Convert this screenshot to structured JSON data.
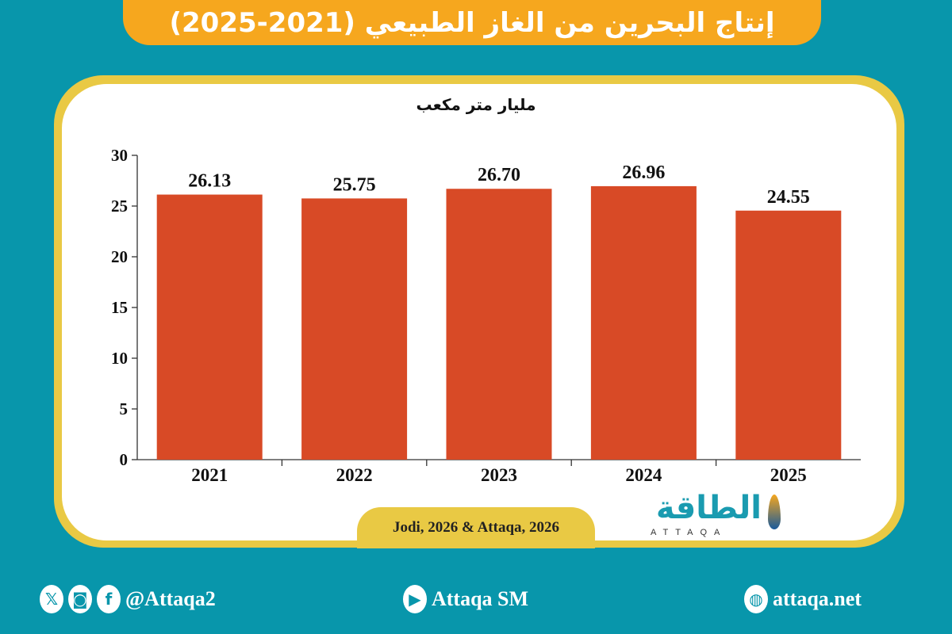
{
  "title": "إنتاج البحرين من الغاز الطبيعي (2021-2025)",
  "source": "Jodi, 2026 & Attaqa, 2026",
  "logo": {
    "arabic": "الطاقة",
    "english": "ATTAQA"
  },
  "footer": {
    "social_handle": "@Attaqa2",
    "youtube": "Attaqa SM",
    "website": "attaqa.net",
    "icons": [
      "x-icon",
      "instagram-icon",
      "facebook-icon",
      "youtube-icon",
      "globe-icon"
    ]
  },
  "colors": {
    "background": "#0896ab",
    "banner": "#f6a71e",
    "card_border": "#e9c944",
    "bar": "#d84a26"
  },
  "chart_data": {
    "type": "bar",
    "title": "إنتاج البحرين من الغاز الطبيعي (2021-2025)",
    "ylabel": "مليار متر مكعب",
    "xlabel": "",
    "categories": [
      "2021",
      "2022",
      "2023",
      "2024",
      "2025"
    ],
    "values": [
      26.13,
      25.75,
      26.7,
      26.96,
      24.55
    ],
    "value_labels": [
      "26.13",
      "25.75",
      "26.70",
      "26.96",
      "24.55"
    ],
    "ylim": [
      0,
      30
    ],
    "yticks": [
      "0",
      "5",
      "10",
      "15",
      "20",
      "25",
      "30"
    ],
    "grid": false,
    "legend": "none"
  }
}
